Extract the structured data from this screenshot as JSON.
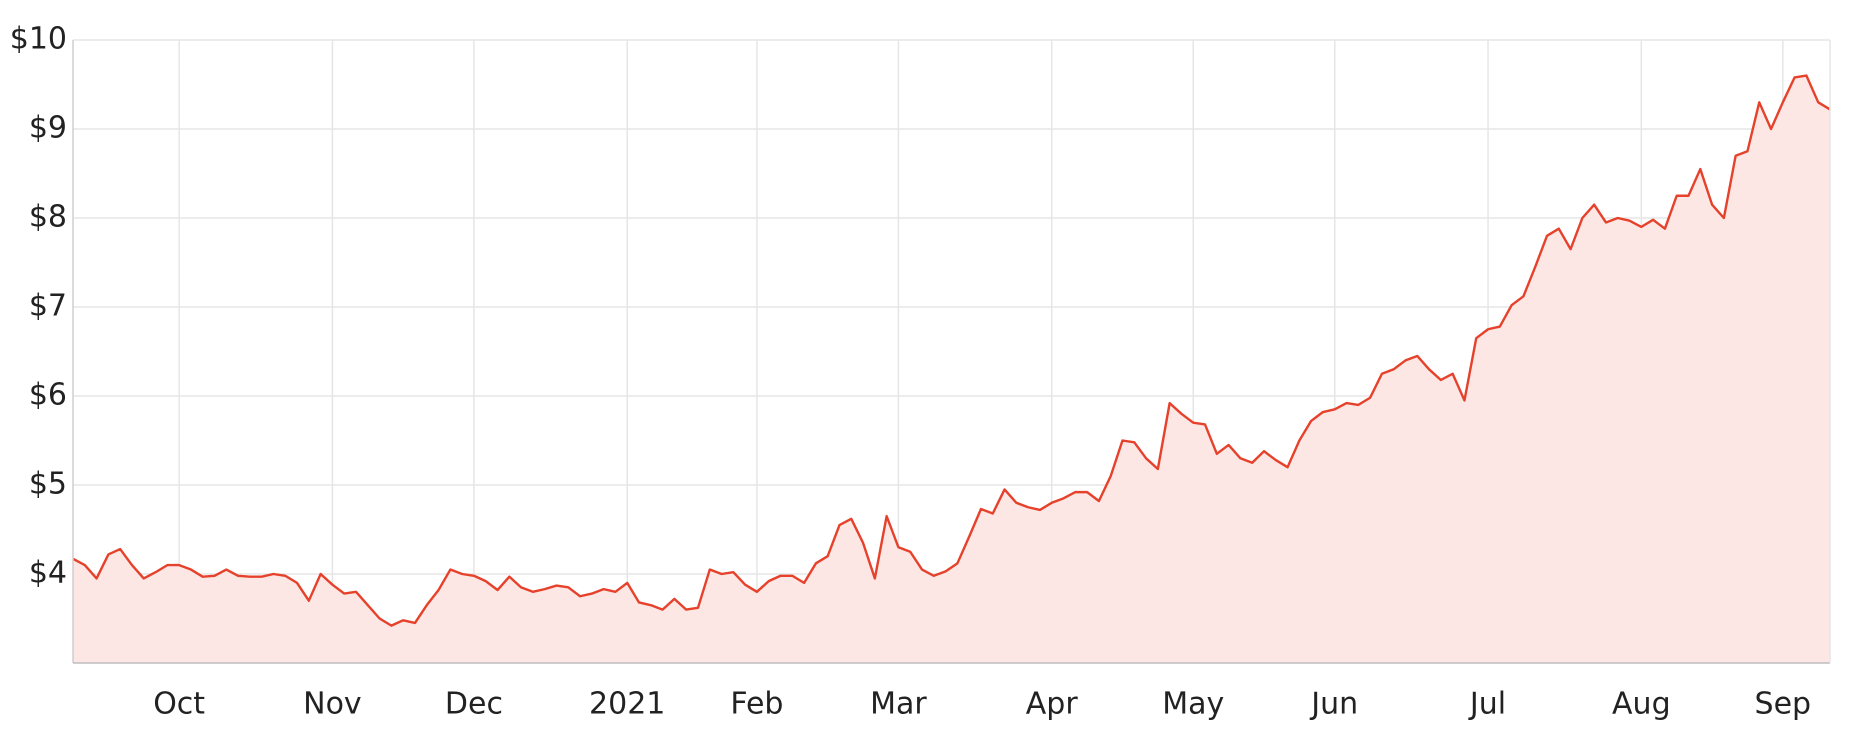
{
  "chart_data": {
    "type": "area",
    "categories": [
      null,
      null,
      null,
      null,
      null,
      null,
      null,
      null,
      null,
      "Oct",
      null,
      null,
      null,
      null,
      null,
      null,
      null,
      null,
      null,
      null,
      null,
      null,
      "Nov",
      null,
      null,
      null,
      null,
      null,
      null,
      null,
      null,
      null,
      null,
      null,
      "Dec",
      null,
      null,
      null,
      null,
      null,
      null,
      null,
      null,
      null,
      null,
      null,
      null,
      "2021",
      null,
      null,
      null,
      null,
      null,
      null,
      null,
      null,
      null,
      null,
      "Feb",
      null,
      null,
      null,
      null,
      null,
      null,
      null,
      null,
      null,
      null,
      null,
      "Mar",
      null,
      null,
      null,
      null,
      null,
      null,
      null,
      null,
      null,
      null,
      null,
      null,
      "Apr",
      null,
      null,
      null,
      null,
      null,
      null,
      null,
      null,
      null,
      null,
      null,
      "May",
      null,
      null,
      null,
      null,
      null,
      null,
      null,
      null,
      null,
      null,
      null,
      "Jun",
      null,
      null,
      null,
      null,
      null,
      null,
      null,
      null,
      null,
      null,
      null,
      null,
      "Jul",
      null,
      null,
      null,
      null,
      null,
      null,
      null,
      null,
      null,
      null,
      null,
      null,
      "Aug",
      null,
      null,
      null,
      null,
      null,
      null,
      null,
      null,
      null,
      null,
      null,
      "Sep",
      null,
      null,
      null,
      null
    ],
    "values": [
      4.17,
      4.1,
      3.95,
      4.22,
      4.28,
      4.1,
      3.95,
      4.02,
      4.1,
      4.1,
      4.05,
      3.97,
      3.98,
      4.05,
      3.98,
      3.97,
      3.97,
      4.0,
      3.98,
      3.9,
      3.7,
      4.0,
      3.88,
      3.78,
      3.8,
      3.65,
      3.5,
      3.42,
      3.48,
      3.45,
      3.65,
      3.82,
      4.05,
      4.0,
      3.98,
      3.92,
      3.82,
      3.97,
      3.85,
      3.8,
      3.83,
      3.87,
      3.85,
      3.75,
      3.78,
      3.83,
      3.8,
      3.9,
      3.68,
      3.65,
      3.6,
      3.72,
      3.6,
      3.62,
      4.05,
      4.0,
      4.02,
      3.88,
      3.8,
      3.92,
      3.98,
      3.98,
      3.9,
      4.12,
      4.2,
      4.55,
      4.62,
      4.35,
      3.95,
      4.65,
      4.3,
      4.25,
      4.05,
      3.98,
      4.03,
      4.12,
      4.42,
      4.73,
      4.68,
      4.95,
      4.8,
      4.75,
      4.72,
      4.8,
      4.85,
      4.92,
      4.92,
      4.82,
      5.1,
      5.5,
      5.48,
      5.3,
      5.18,
      5.92,
      5.8,
      5.7,
      5.68,
      5.35,
      5.45,
      5.3,
      5.25,
      5.38,
      5.28,
      5.2,
      5.5,
      5.72,
      5.82,
      5.85,
      5.92,
      5.9,
      5.98,
      6.25,
      6.3,
      6.4,
      6.45,
      6.3,
      6.18,
      6.25,
      5.95,
      6.65,
      6.75,
      6.78,
      7.02,
      7.12,
      7.45,
      7.8,
      7.88,
      7.65,
      8.0,
      8.15,
      7.95,
      8.0,
      7.97,
      7.9,
      7.98,
      7.88,
      8.25,
      8.25,
      8.55,
      8.15,
      8.0,
      8.7,
      8.75,
      9.3,
      9.0,
      9.3,
      9.58,
      9.6,
      9.3,
      9.22
    ],
    "color": "#e6412b",
    "area_color": "#fde7e4",
    "ylim": [
      3,
      10
    ],
    "yticks": [
      {
        "value": 4,
        "label": "$4"
      },
      {
        "value": 5,
        "label": "$5"
      },
      {
        "value": 6,
        "label": "$6"
      },
      {
        "value": 7,
        "label": "$7"
      },
      {
        "value": 8,
        "label": "$8"
      },
      {
        "value": 9,
        "label": "$9"
      },
      {
        "value": 10,
        "label": "$10"
      }
    ],
    "grid": true
  }
}
